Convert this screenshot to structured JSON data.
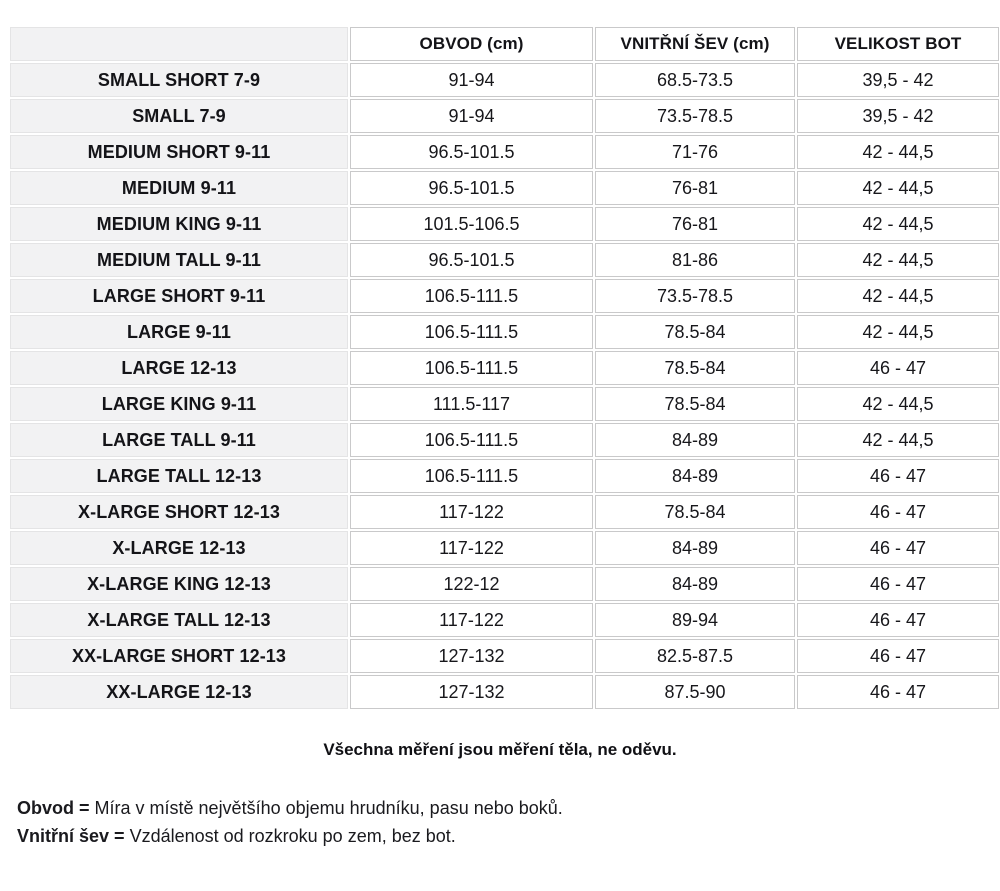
{
  "table": {
    "columns": [
      {
        "label": ""
      },
      {
        "label": "OBVOD (cm)"
      },
      {
        "label": "VNITŘNÍ ŠEV (cm)"
      },
      {
        "label": "VELIKOST BOT"
      }
    ],
    "rows": [
      {
        "size": "SMALL SHORT 7-9",
        "obvod": "91-94",
        "sev": "68.5-73.5",
        "bot": "39,5 - 42"
      },
      {
        "size": "SMALL 7-9",
        "obvod": "91-94",
        "sev": "73.5-78.5",
        "bot": "39,5 - 42"
      },
      {
        "size": "MEDIUM SHORT 9-11",
        "obvod": "96.5-101.5",
        "sev": "71-76",
        "bot": "42 - 44,5"
      },
      {
        "size": "MEDIUM 9-11",
        "obvod": "96.5-101.5",
        "sev": "76-81",
        "bot": "42 - 44,5"
      },
      {
        "size": "MEDIUM KING 9-11",
        "obvod": "101.5-106.5",
        "sev": "76-81",
        "bot": "42 - 44,5"
      },
      {
        "size": "MEDIUM TALL 9-11",
        "obvod": "96.5-101.5",
        "sev": "81-86",
        "bot": "42 - 44,5"
      },
      {
        "size": "LARGE SHORT 9-11",
        "obvod": "106.5-111.5",
        "sev": "73.5-78.5",
        "bot": "42 - 44,5"
      },
      {
        "size": "LARGE 9-11",
        "obvod": "106.5-111.5",
        "sev": "78.5-84",
        "bot": "42 - 44,5"
      },
      {
        "size": "LARGE 12-13",
        "obvod": "106.5-111.5",
        "sev": "78.5-84",
        "bot": "46 - 47"
      },
      {
        "size": "LARGE KING 9-11",
        "obvod": "111.5-117",
        "sev": "78.5-84",
        "bot": "42 - 44,5"
      },
      {
        "size": "LARGE TALL 9-11",
        "obvod": "106.5-111.5",
        "sev": "84-89",
        "bot": "42 - 44,5"
      },
      {
        "size": "LARGE TALL 12-13",
        "obvod": "106.5-111.5",
        "sev": "84-89",
        "bot": "46 - 47"
      },
      {
        "size": "X-LARGE SHORT 12-13",
        "obvod": "117-122",
        "sev": "78.5-84",
        "bot": "46 - 47"
      },
      {
        "size": "X-LARGE 12-13",
        "obvod": "117-122",
        "sev": "84-89",
        "bot": "46 - 47"
      },
      {
        "size": "X-LARGE KING 12-13",
        "obvod": "122-12",
        "sev": "84-89",
        "bot": "46 - 47"
      },
      {
        "size": "X-LARGE TALL 12-13",
        "obvod": "117-122",
        "sev": "89-94",
        "bot": "46 - 47"
      },
      {
        "size": "XX-LARGE SHORT 12-13",
        "obvod": "127-132",
        "sev": "82.5-87.5",
        "bot": "46 - 47"
      },
      {
        "size": "XX-LARGE 12-13",
        "obvod": "127-132",
        "sev": "87.5-90",
        "bot": "46 - 47"
      }
    ]
  },
  "notes": {
    "center": "Všechna měření jsou měření těla, ne oděvu.",
    "definitions": [
      {
        "term": "Obvod =",
        "text": "Míra v místě největšího objemu hrudníku, pasu nebo boků."
      },
      {
        "term": "Vnitřní šev =",
        "text": "Vzdálenost od rozkroku po zem, bez bot."
      }
    ]
  },
  "colors": {
    "label_cell_bg": "#f2f2f3",
    "data_cell_border": "#c9c9ca",
    "label_cell_border": "#e4e4e5",
    "text": "#141418"
  }
}
